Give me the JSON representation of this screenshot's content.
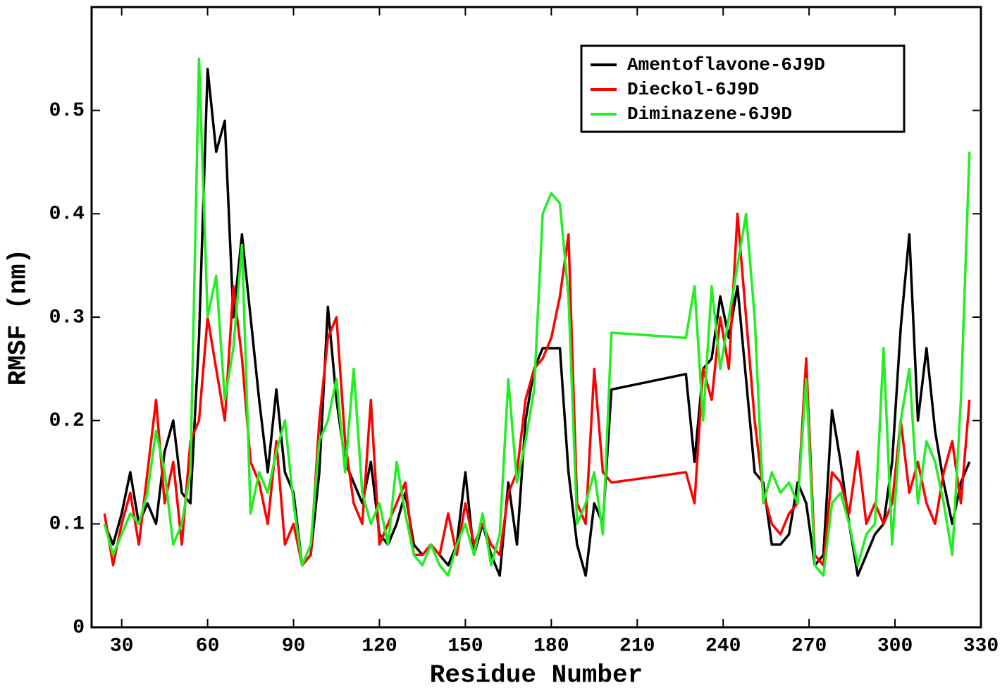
{
  "chart_data": {
    "type": "line",
    "xlabel": "Residue Number",
    "ylabel": "RMSF (nm)",
    "x": [
      24,
      27,
      30,
      33,
      36,
      39,
      42,
      45,
      48,
      51,
      54,
      57,
      60,
      63,
      66,
      69,
      72,
      75,
      78,
      81,
      84,
      87,
      90,
      93,
      96,
      99,
      102,
      105,
      108,
      111,
      114,
      117,
      120,
      123,
      126,
      129,
      132,
      135,
      138,
      141,
      144,
      147,
      150,
      153,
      156,
      159,
      162,
      165,
      168,
      171,
      174,
      177,
      180,
      183,
      186,
      189,
      192,
      195,
      198,
      201,
      227,
      230,
      233,
      236,
      239,
      242,
      245,
      248,
      251,
      254,
      257,
      260,
      263,
      266,
      269,
      272,
      275,
      278,
      281,
      284,
      287,
      290,
      293,
      296,
      299,
      302,
      305,
      308,
      311,
      314,
      317,
      320,
      323,
      326
    ],
    "series": [
      {
        "name": "Amentoflavone-6J9D",
        "color": "#000000",
        "values": [
          0.1,
          0.08,
          0.11,
          0.15,
          0.1,
          0.12,
          0.1,
          0.17,
          0.2,
          0.13,
          0.12,
          0.28,
          0.54,
          0.46,
          0.49,
          0.3,
          0.38,
          0.3,
          0.22,
          0.15,
          0.23,
          0.15,
          0.13,
          0.06,
          0.07,
          0.15,
          0.31,
          0.22,
          0.16,
          0.14,
          0.12,
          0.16,
          0.09,
          0.08,
          0.1,
          0.13,
          0.08,
          0.07,
          0.08,
          0.07,
          0.06,
          0.08,
          0.15,
          0.07,
          0.1,
          0.07,
          0.05,
          0.14,
          0.08,
          0.2,
          0.25,
          0.27,
          0.27,
          0.27,
          0.15,
          0.08,
          0.05,
          0.12,
          0.1,
          0.23,
          0.245,
          0.16,
          0.25,
          0.26,
          0.32,
          0.28,
          0.33,
          0.24,
          0.15,
          0.14,
          0.08,
          0.08,
          0.09,
          0.14,
          0.12,
          0.06,
          0.07,
          0.21,
          0.16,
          0.1,
          0.05,
          0.07,
          0.09,
          0.1,
          0.16,
          0.29,
          0.38,
          0.2,
          0.27,
          0.19,
          0.14,
          0.1,
          0.14,
          0.16
        ]
      },
      {
        "name": "Dieckol-6J9D",
        "color": "#ff0000",
        "values": [
          0.11,
          0.06,
          0.1,
          0.13,
          0.08,
          0.15,
          0.22,
          0.12,
          0.16,
          0.08,
          0.18,
          0.2,
          0.3,
          0.25,
          0.2,
          0.33,
          0.26,
          0.16,
          0.14,
          0.1,
          0.18,
          0.08,
          0.1,
          0.06,
          0.07,
          0.2,
          0.28,
          0.3,
          0.18,
          0.12,
          0.1,
          0.22,
          0.08,
          0.1,
          0.12,
          0.14,
          0.07,
          0.07,
          0.08,
          0.07,
          0.11,
          0.07,
          0.12,
          0.08,
          0.1,
          0.08,
          0.07,
          0.13,
          0.15,
          0.22,
          0.25,
          0.26,
          0.28,
          0.32,
          0.38,
          0.12,
          0.1,
          0.25,
          0.15,
          0.14,
          0.15,
          0.12,
          0.25,
          0.22,
          0.3,
          0.25,
          0.4,
          0.3,
          0.2,
          0.13,
          0.1,
          0.09,
          0.11,
          0.12,
          0.26,
          0.07,
          0.06,
          0.15,
          0.14,
          0.11,
          0.17,
          0.1,
          0.12,
          0.1,
          0.12,
          0.2,
          0.13,
          0.16,
          0.12,
          0.1,
          0.15,
          0.18,
          0.12,
          0.22
        ]
      },
      {
        "name": "Diminazene-6J9D",
        "color": "#22ee22",
        "values": [
          0.1,
          0.07,
          0.09,
          0.11,
          0.1,
          0.13,
          0.19,
          0.15,
          0.08,
          0.1,
          0.15,
          0.55,
          0.3,
          0.34,
          0.22,
          0.27,
          0.37,
          0.11,
          0.15,
          0.13,
          0.17,
          0.2,
          0.12,
          0.06,
          0.08,
          0.18,
          0.2,
          0.24,
          0.15,
          0.25,
          0.13,
          0.1,
          0.12,
          0.08,
          0.16,
          0.11,
          0.07,
          0.06,
          0.08,
          0.06,
          0.05,
          0.08,
          0.1,
          0.07,
          0.11,
          0.06,
          0.09,
          0.24,
          0.14,
          0.18,
          0.23,
          0.4,
          0.42,
          0.41,
          0.32,
          0.1,
          0.12,
          0.15,
          0.09,
          0.285,
          0.28,
          0.33,
          0.2,
          0.33,
          0.25,
          0.3,
          0.35,
          0.4,
          0.3,
          0.12,
          0.15,
          0.13,
          0.14,
          0.12,
          0.24,
          0.06,
          0.05,
          0.12,
          0.13,
          0.1,
          0.06,
          0.09,
          0.1,
          0.27,
          0.08,
          0.2,
          0.25,
          0.12,
          0.18,
          0.16,
          0.12,
          0.07,
          0.22,
          0.46
        ]
      }
    ],
    "xlim": [
      19.5,
      330
    ],
    "xticks": [
      30,
      60,
      90,
      120,
      150,
      180,
      210,
      240,
      270,
      300,
      330
    ],
    "ylim": [
      0,
      0.6
    ],
    "yticks": [
      0,
      0.1,
      0.2,
      0.3,
      0.4,
      0.5
    ],
    "legend": "upper right",
    "grid": false
  }
}
